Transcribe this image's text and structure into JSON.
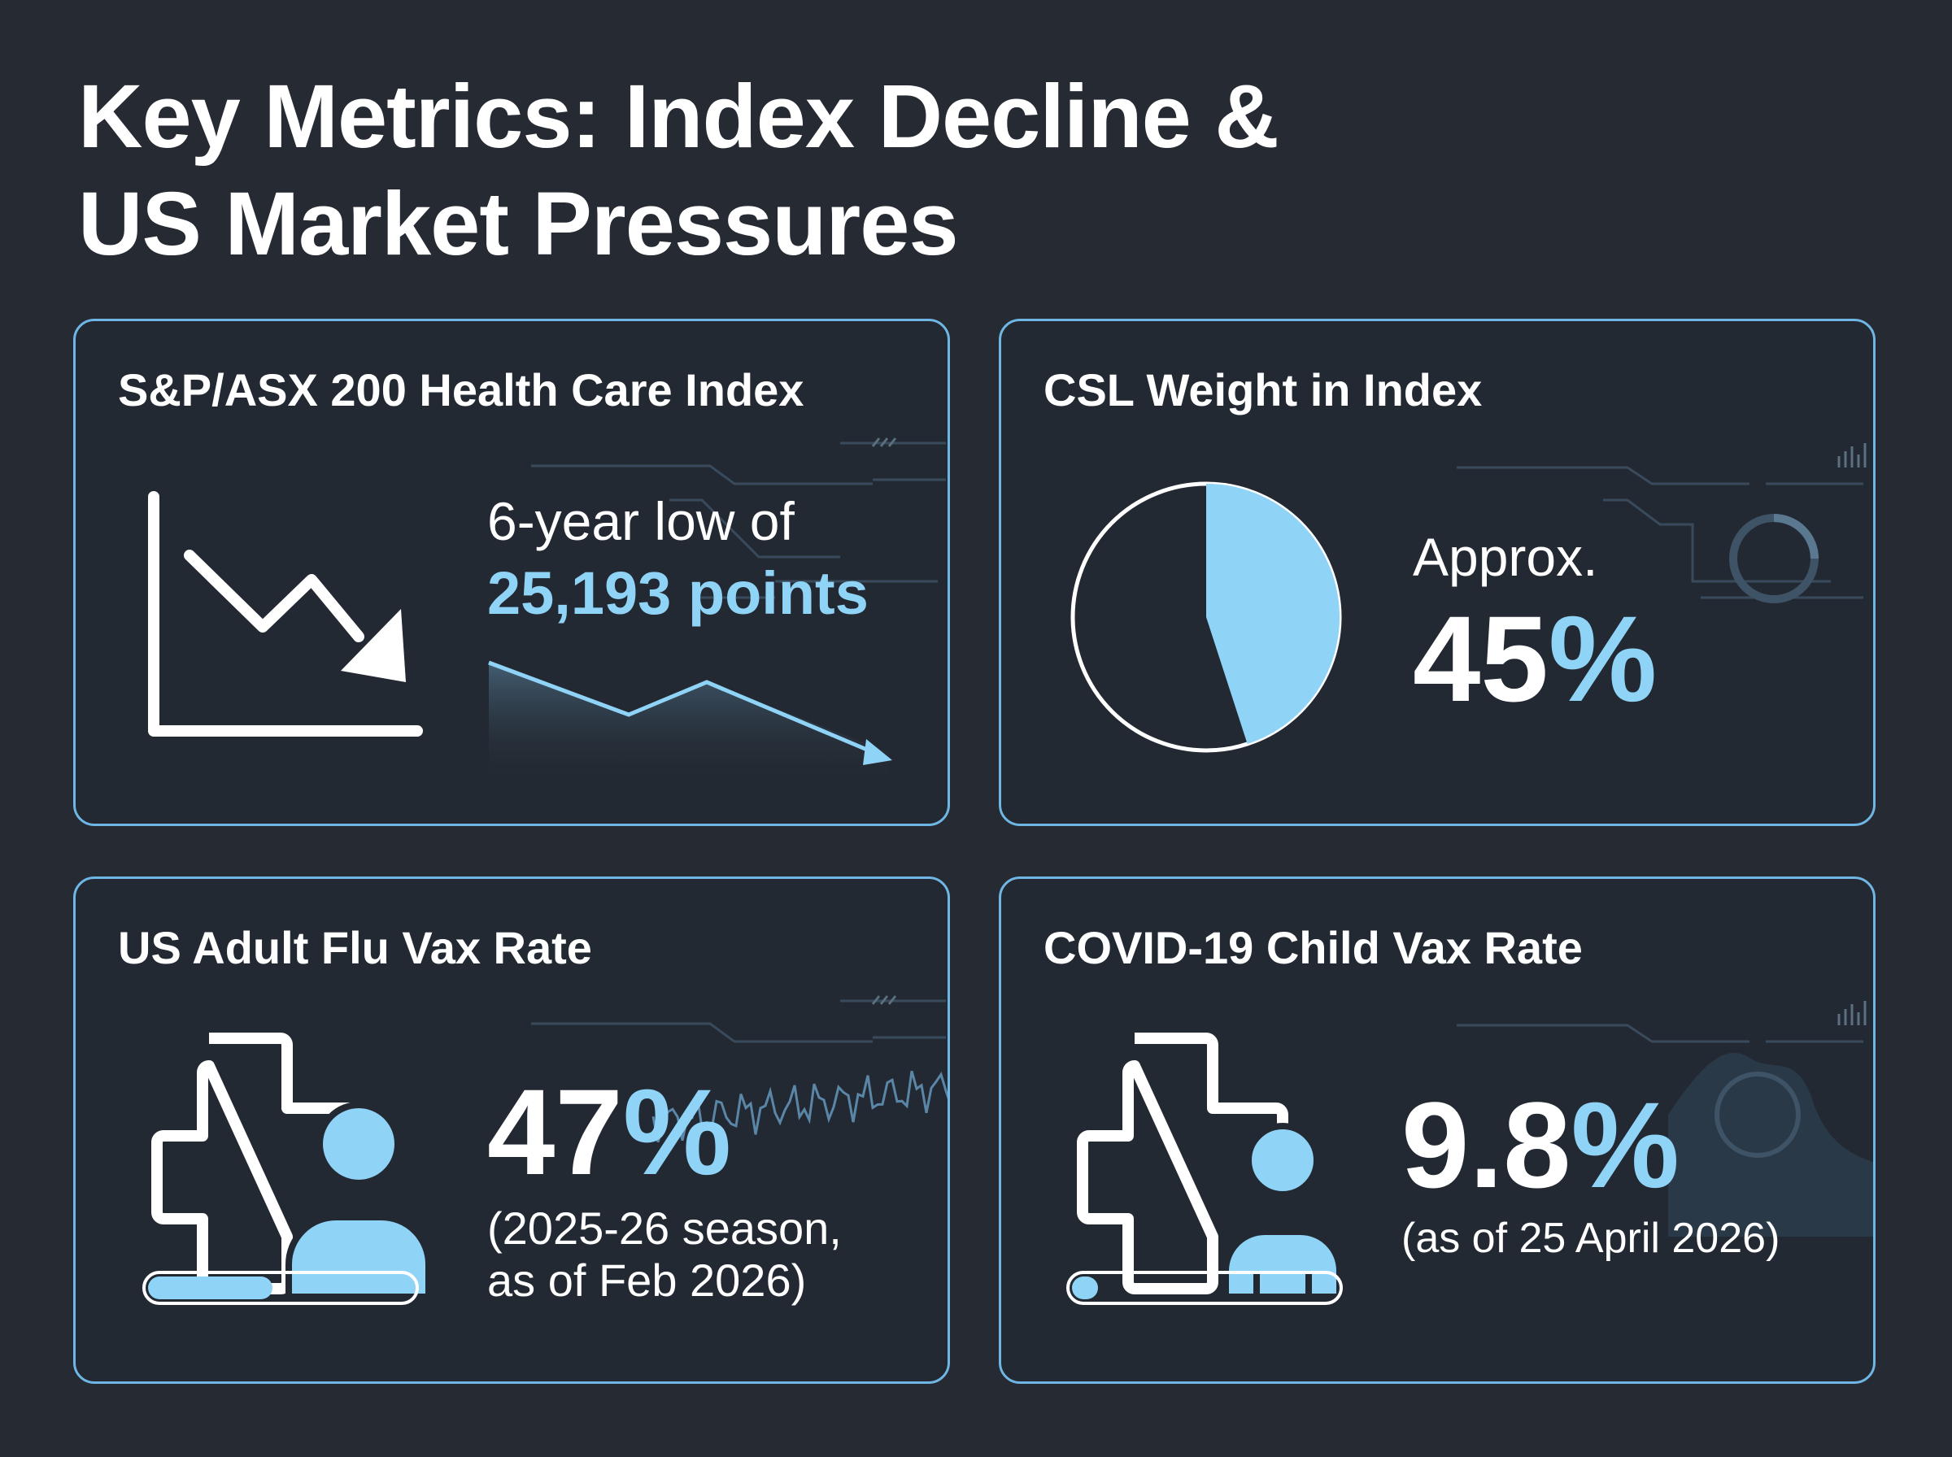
{
  "title": {
    "line1": "Key Metrics: Index Decline &",
    "line2": "US Market Pressures"
  },
  "colors": {
    "background": "#252a33",
    "accent": "#8fd3f7",
    "border": "#6fb6e4",
    "text": "#ffffff"
  },
  "cards": {
    "index": {
      "title": "S&P/ASX 200 Health Care Index",
      "line1": "6-year low of",
      "value": "25,193 points",
      "icon": "declining-chart-icon"
    },
    "csl": {
      "title": "CSL Weight in Index",
      "prefix": "Approx.",
      "value": "45%",
      "share": 0.45,
      "icon": "pie-chart-icon"
    },
    "flu": {
      "title": "US Adult Flu Vax Rate",
      "value": "47%",
      "note1": "(2025-26 season,",
      "note2": "as of Feb 2026)",
      "progress": 0.47,
      "icon": "medical-cross-person-icon"
    },
    "covid": {
      "title": "COVID-19 Child Vax Rate",
      "value": "9.8%",
      "note1": "(as of 25 April 2026)",
      "progress": 0.098,
      "icon": "medical-cross-person-icon"
    }
  }
}
